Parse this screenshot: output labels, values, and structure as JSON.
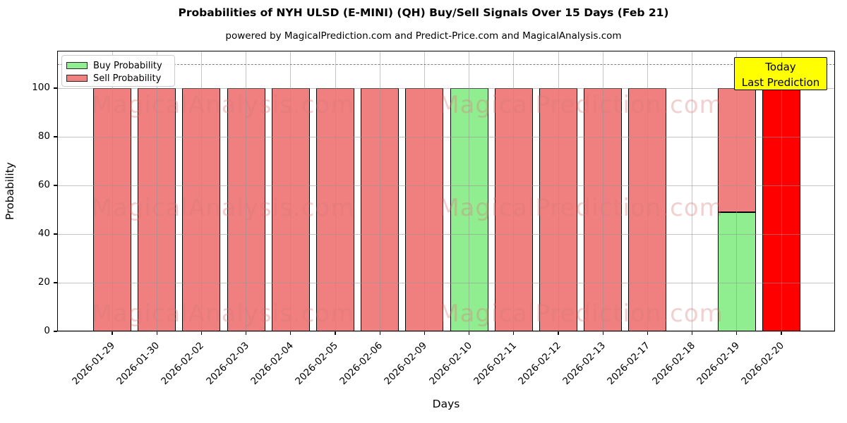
{
  "header": {
    "title": "Probabilities of NYH ULSD (E-MINI) (QH) Buy/Sell Signals Over 15 Days (Feb 21)",
    "subtitle": "powered by MagicalPrediction.com and Predict-Price.com and MagicalAnalysis.com"
  },
  "legend": {
    "items": [
      {
        "label": "Buy Probability",
        "color": "#90EE90"
      },
      {
        "label": "Sell Probability",
        "color": "#F08080"
      }
    ]
  },
  "annotation": {
    "line1": "Today",
    "line2": "Last Prediction",
    "bg_color": "#FFFF00"
  },
  "watermarks": {
    "left_text": "MagicalAnalysis.com",
    "right_text": "MagicalPrediction.com"
  },
  "chart_data": {
    "type": "bar",
    "stacked": true,
    "title": "Probabilities of NYH ULSD (E-MINI) (QH) Buy/Sell Signals Over 15 Days (Feb 21)",
    "subtitle": "powered by MagicalPrediction.com and Predict-Price.com and MagicalAnalysis.com",
    "xlabel": "Days",
    "ylabel": "Probability",
    "ylim": [
      0,
      115
    ],
    "yticks": [
      0,
      20,
      40,
      60,
      80,
      100
    ],
    "grid": true,
    "legend_position": "upper left",
    "dashed_hline_y": 110,
    "categories": [
      "2026-01-29",
      "2026-01-30",
      "2026-02-02",
      "2026-02-03",
      "2026-02-04",
      "2026-02-05",
      "2026-02-06",
      "2026-02-09",
      "2026-02-10",
      "2026-02-11",
      "2026-02-12",
      "2026-02-13",
      "2026-02-17",
      "2026-02-18",
      "2026-02-19",
      "2026-02-20"
    ],
    "series": [
      {
        "name": "Buy Probability",
        "color": "#90EE90",
        "values": [
          0,
          0,
          0,
          0,
          0,
          0,
          0,
          0,
          100,
          0,
          0,
          0,
          0,
          0,
          49,
          0
        ]
      },
      {
        "name": "Sell Probability",
        "color": "#F08080",
        "values": [
          100,
          100,
          100,
          100,
          100,
          100,
          100,
          100,
          0,
          100,
          100,
          100,
          100,
          0,
          51,
          0
        ]
      },
      {
        "name": "Today / Last Prediction",
        "color": "#FF0000",
        "values": [
          0,
          0,
          0,
          0,
          0,
          0,
          0,
          0,
          0,
          0,
          0,
          0,
          0,
          0,
          0,
          100
        ]
      }
    ]
  }
}
